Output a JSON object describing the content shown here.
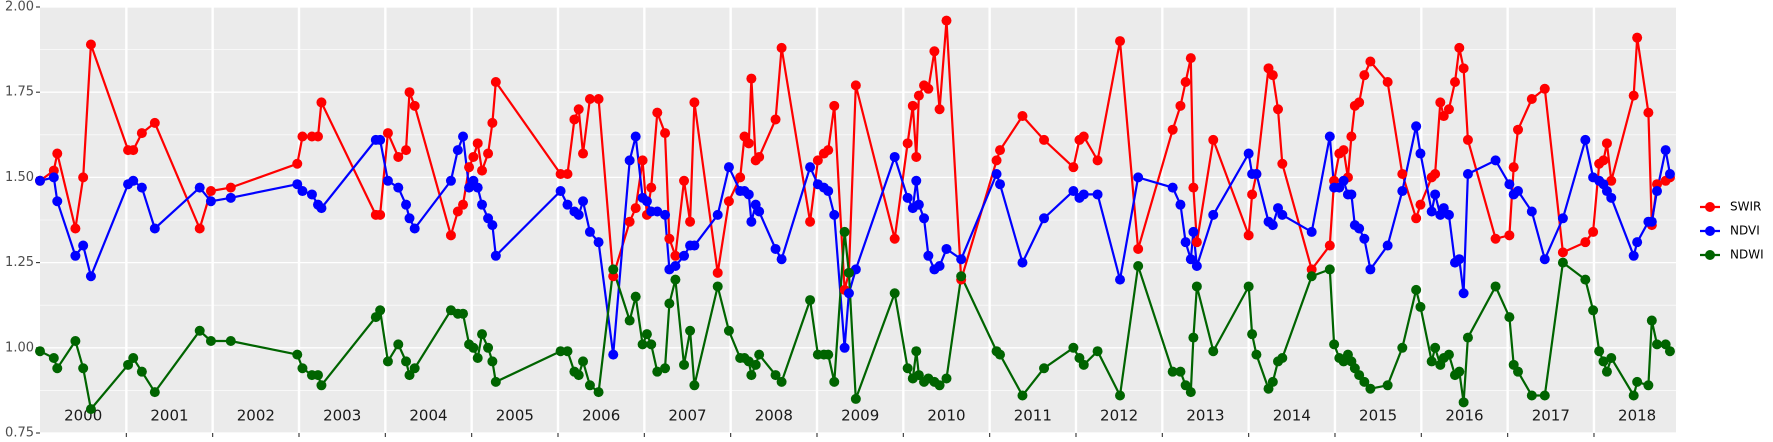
{
  "chart_data": {
    "type": "line",
    "x": [
      2000.0,
      2000.16,
      2000.2,
      2000.41,
      2000.5,
      2000.59,
      2001.02,
      2001.08,
      2001.18,
      2001.33,
      2001.85,
      2001.98,
      2002.21,
      2002.98,
      2003.04,
      2003.15,
      2003.22,
      2003.26,
      2003.89,
      2003.94,
      2004.03,
      2004.15,
      2004.24,
      2004.28,
      2004.34,
      2004.76,
      2004.84,
      2004.9,
      2004.97,
      2005.02,
      2005.07,
      2005.12,
      2005.19,
      2005.24,
      2005.28,
      2006.03,
      2006.11,
      2006.19,
      2006.24,
      2006.29,
      2006.37,
      2006.47,
      2006.64,
      2006.83,
      2006.9,
      2006.98,
      2007.03,
      2007.08,
      2007.15,
      2007.24,
      2007.29,
      2007.36,
      2007.46,
      2007.53,
      2007.58,
      2007.85,
      2007.98,
      2008.11,
      2008.16,
      2008.21,
      2008.24,
      2008.29,
      2008.33,
      2008.52,
      2008.59,
      2008.92,
      2009.01,
      2009.08,
      2009.13,
      2009.2,
      2009.32,
      2009.37,
      2009.45,
      2009.9,
      2010.05,
      2010.11,
      2010.15,
      2010.18,
      2010.24,
      2010.29,
      2010.36,
      2010.42,
      2010.5,
      2010.67,
      2011.08,
      2011.12,
      2011.38,
      2011.63,
      2011.97,
      2012.04,
      2012.09,
      2012.25,
      2012.51,
      2012.72,
      2013.12,
      2013.21,
      2013.27,
      2013.33,
      2013.36,
      2013.4,
      2013.59,
      2014.0,
      2014.04,
      2014.09,
      2014.23,
      2014.28,
      2014.34,
      2014.39,
      2014.73,
      2014.94,
      2014.99,
      2015.05,
      2015.1,
      2015.15,
      2015.19,
      2015.23,
      2015.28,
      2015.34,
      2015.41,
      2015.61,
      2015.78,
      2015.94,
      2015.99,
      2016.12,
      2016.16,
      2016.22,
      2016.26,
      2016.32,
      2016.39,
      2016.44,
      2016.49,
      2016.54,
      2016.86,
      2017.02,
      2017.07,
      2017.12,
      2017.28,
      2017.43,
      2017.64,
      2017.9,
      2017.99,
      2018.06,
      2018.11,
      2018.15,
      2018.2,
      2018.46,
      2018.5,
      2018.63,
      2018.67,
      2018.73,
      2018.83,
      2018.88
    ],
    "series": [
      {
        "name": "SWIR",
        "color": "#ff0000",
        "values": [
          1.49,
          1.52,
          1.57,
          1.35,
          1.5,
          1.89,
          1.58,
          1.58,
          1.63,
          1.66,
          1.35,
          1.46,
          1.47,
          1.54,
          1.62,
          1.62,
          1.62,
          1.72,
          1.39,
          1.39,
          1.63,
          1.56,
          1.58,
          1.75,
          1.71,
          1.33,
          1.4,
          1.42,
          1.53,
          1.56,
          1.6,
          1.52,
          1.57,
          1.66,
          1.78,
          1.51,
          1.51,
          1.67,
          1.7,
          1.57,
          1.73,
          1.73,
          1.21,
          1.37,
          1.41,
          1.55,
          1.39,
          1.47,
          1.69,
          1.63,
          1.32,
          1.27,
          1.49,
          1.37,
          1.72,
          1.22,
          1.43,
          1.5,
          1.62,
          1.6,
          1.79,
          1.55,
          1.56,
          1.67,
          1.88,
          1.37,
          1.55,
          1.57,
          1.58,
          1.71,
          1.17,
          1.22,
          1.77,
          1.32,
          1.6,
          1.71,
          1.56,
          1.74,
          1.77,
          1.76,
          1.87,
          1.7,
          1.96,
          1.2,
          1.55,
          1.58,
          1.68,
          1.61,
          1.53,
          1.61,
          1.62,
          1.55,
          1.9,
          1.29,
          1.64,
          1.71,
          1.78,
          1.85,
          1.47,
          1.31,
          1.61,
          1.33,
          1.45,
          1.51,
          1.82,
          1.8,
          1.7,
          1.54,
          1.23,
          1.3,
          1.49,
          1.57,
          1.58,
          1.5,
          1.62,
          1.71,
          1.72,
          1.8,
          1.84,
          1.78,
          1.51,
          1.38,
          1.42,
          1.5,
          1.51,
          1.72,
          1.68,
          1.7,
          1.78,
          1.88,
          1.82,
          1.61,
          1.32,
          1.33,
          1.53,
          1.64,
          1.73,
          1.76,
          1.28,
          1.31,
          1.34,
          1.54,
          1.55,
          1.6,
          1.49,
          1.74,
          1.91,
          1.69,
          1.36,
          1.48,
          1.49,
          1.5
        ]
      },
      {
        "name": "NDVI",
        "color": "#0000ff",
        "values": [
          1.49,
          1.5,
          1.43,
          1.27,
          1.3,
          1.21,
          1.48,
          1.49,
          1.47,
          1.35,
          1.47,
          1.43,
          1.44,
          1.48,
          1.46,
          1.45,
          1.42,
          1.41,
          1.61,
          1.61,
          1.49,
          1.47,
          1.42,
          1.38,
          1.35,
          1.49,
          1.58,
          1.62,
          1.47,
          1.49,
          1.47,
          1.42,
          1.38,
          1.36,
          1.27,
          1.46,
          1.42,
          1.4,
          1.39,
          1.43,
          1.34,
          1.31,
          0.98,
          1.55,
          1.62,
          1.44,
          1.43,
          1.4,
          1.4,
          1.39,
          1.23,
          1.24,
          1.27,
          1.3,
          1.3,
          1.39,
          1.53,
          1.46,
          1.46,
          1.45,
          1.37,
          1.42,
          1.4,
          1.29,
          1.26,
          1.53,
          1.48,
          1.47,
          1.46,
          1.39,
          1.0,
          1.16,
          1.23,
          1.56,
          1.44,
          1.41,
          1.49,
          1.42,
          1.38,
          1.27,
          1.23,
          1.24,
          1.29,
          1.26,
          1.51,
          1.48,
          1.25,
          1.38,
          1.46,
          1.44,
          1.45,
          1.45,
          1.2,
          1.5,
          1.47,
          1.42,
          1.31,
          1.26,
          1.34,
          1.24,
          1.39,
          1.57,
          1.51,
          1.51,
          1.37,
          1.36,
          1.41,
          1.39,
          1.34,
          1.62,
          1.47,
          1.47,
          1.49,
          1.45,
          1.45,
          1.36,
          1.35,
          1.32,
          1.23,
          1.3,
          1.46,
          1.65,
          1.57,
          1.4,
          1.45,
          1.39,
          1.41,
          1.39,
          1.25,
          1.26,
          1.16,
          1.51,
          1.55,
          1.48,
          1.45,
          1.46,
          1.4,
          1.26,
          1.38,
          1.61,
          1.5,
          1.49,
          1.48,
          1.46,
          1.44,
          1.27,
          1.31,
          1.37,
          1.37,
          1.46,
          1.58,
          1.51
        ]
      },
      {
        "name": "NDWI",
        "color": "#006400",
        "values": [
          0.99,
          0.97,
          0.94,
          1.02,
          0.94,
          0.82,
          0.95,
          0.97,
          0.93,
          0.87,
          1.05,
          1.02,
          1.02,
          0.98,
          0.94,
          0.92,
          0.92,
          0.89,
          1.09,
          1.11,
          0.96,
          1.01,
          0.96,
          0.92,
          0.94,
          1.11,
          1.1,
          1.1,
          1.01,
          1.0,
          0.97,
          1.04,
          1.0,
          0.96,
          0.9,
          0.99,
          0.99,
          0.93,
          0.92,
          0.96,
          0.89,
          0.87,
          1.23,
          1.08,
          1.15,
          1.01,
          1.04,
          1.01,
          0.93,
          0.94,
          1.13,
          1.2,
          0.95,
          1.05,
          0.89,
          1.18,
          1.05,
          0.97,
          0.97,
          0.96,
          0.92,
          0.95,
          0.98,
          0.92,
          0.9,
          1.14,
          0.98,
          0.98,
          0.98,
          0.9,
          1.34,
          1.22,
          0.85,
          1.16,
          0.94,
          0.91,
          0.99,
          0.92,
          0.9,
          0.91,
          0.9,
          0.89,
          0.91,
          1.21,
          0.99,
          0.98,
          0.86,
          0.94,
          1.0,
          0.97,
          0.95,
          0.99,
          0.86,
          1.24,
          0.93,
          0.93,
          0.89,
          0.87,
          1.03,
          1.18,
          0.99,
          1.18,
          1.04,
          0.98,
          0.88,
          0.9,
          0.96,
          0.97,
          1.21,
          1.23,
          1.01,
          0.97,
          0.96,
          0.98,
          0.96,
          0.94,
          0.92,
          0.9,
          0.88,
          0.89,
          1.0,
          1.17,
          1.12,
          0.96,
          1.0,
          0.95,
          0.97,
          0.98,
          0.92,
          0.93,
          0.84,
          1.03,
          1.18,
          1.09,
          0.95,
          0.93,
          0.86,
          0.86,
          1.25,
          1.2,
          1.11,
          0.99,
          0.96,
          0.93,
          0.97,
          0.86,
          0.9,
          0.89,
          1.08,
          1.01,
          1.01,
          0.99
        ]
      }
    ],
    "xlim": [
      2000,
      2018.95
    ],
    "xticks": [
      {
        "value": 2000.5,
        "label": "2000"
      },
      {
        "value": 2001.5,
        "label": "2001"
      },
      {
        "value": 2002.5,
        "label": "2002"
      },
      {
        "value": 2003.5,
        "label": "2003"
      },
      {
        "value": 2004.5,
        "label": "2004"
      },
      {
        "value": 2005.5,
        "label": "2005"
      },
      {
        "value": 2006.5,
        "label": "2006"
      },
      {
        "value": 2007.5,
        "label": "2007"
      },
      {
        "value": 2008.5,
        "label": "2008"
      },
      {
        "value": 2009.5,
        "label": "2009"
      },
      {
        "value": 2010.5,
        "label": "2010"
      },
      {
        "value": 2011.5,
        "label": "2011"
      },
      {
        "value": 2012.5,
        "label": "2012"
      },
      {
        "value": 2013.5,
        "label": "2013"
      },
      {
        "value": 2014.5,
        "label": "2014"
      },
      {
        "value": 2015.5,
        "label": "2015"
      },
      {
        "value": 2016.5,
        "label": "2016"
      },
      {
        "value": 2017.5,
        "label": "2017"
      },
      {
        "value": 2018.5,
        "label": "2018"
      }
    ],
    "xgrid": [
      2001,
      2002,
      2003,
      2004,
      2005,
      2006,
      2007,
      2008,
      2009,
      2010,
      2011,
      2012,
      2013,
      2014,
      2015,
      2016,
      2017,
      2018
    ],
    "ylim": [
      0.75,
      2.0
    ],
    "yticks": [
      0.75,
      {
        "value": 1,
        "label": "1.00"
      },
      1.25,
      {
        "value": 1.5,
        "label": "1.50"
      },
      1.75,
      {
        "value": 2,
        "label": "2.00"
      }
    ],
    "yminor": [
      0.875,
      1.125,
      1.375,
      1.625,
      1.875
    ],
    "grid": true,
    "legend": "right"
  }
}
